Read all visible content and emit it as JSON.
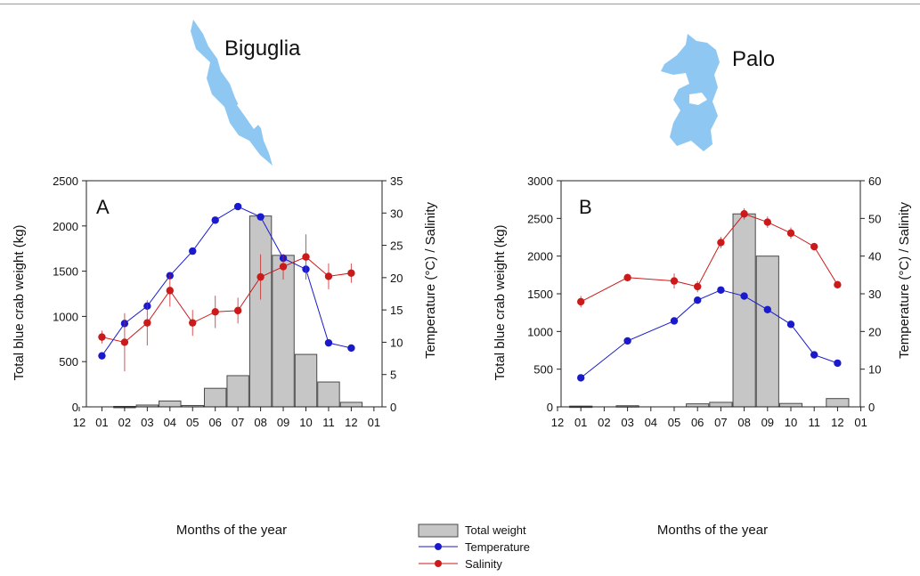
{
  "colors": {
    "bar_fill": "#c6c6c6",
    "bar_stroke": "#4a4a4a",
    "temperature": "#1a1acc",
    "salinity": "#cc1a1a",
    "lake": "#8ec8f2",
    "axis": "#222222"
  },
  "lakes": [
    {
      "name": "Biguglia",
      "icon": "biguglia-lake-map-icon"
    },
    {
      "name": "Palo",
      "icon": "palo-lake-map-icon"
    }
  ],
  "legend": {
    "items": [
      {
        "label": "Total weight",
        "kind": "bar"
      },
      {
        "label": "Temperature",
        "kind": "line-temperature"
      },
      {
        "label": "Salinity",
        "kind": "line-salinity"
      }
    ]
  },
  "chart_data": [
    {
      "type": "bar",
      "panel_label": "A",
      "xlabel": "Months of the year",
      "ylabel": "Total blue crab weight (kg)",
      "ylabel_right": "Temperature (°C) / Salinity",
      "x_ticks": [
        "12",
        "01",
        "02",
        "03",
        "04",
        "05",
        "06",
        "07",
        "08",
        "09",
        "10",
        "11",
        "12",
        "01"
      ],
      "ylim": [
        0,
        2500
      ],
      "y_ticks": [
        0,
        500,
        1000,
        1500,
        2000,
        2500
      ],
      "ylim_right": [
        0,
        35
      ],
      "y_ticks_right": [
        0,
        5,
        10,
        15,
        20,
        25,
        30,
        35
      ],
      "grid": false,
      "bars": {
        "name": "Total weight",
        "x": [
          2,
          3,
          4,
          5,
          6,
          7,
          8,
          9,
          10,
          11,
          12
        ],
        "values": [
          5,
          20,
          65,
          15,
          205,
          345,
          2110,
          1675,
          580,
          275,
          50
        ]
      },
      "series": [
        {
          "name": "Temperature",
          "axis": "right",
          "x": [
            1,
            2,
            3,
            4,
            5,
            6,
            7,
            8,
            9,
            10,
            11,
            12
          ],
          "values": [
            7.9,
            12.9,
            15.6,
            20.3,
            24.1,
            28.9,
            31.0,
            29.4,
            23.0,
            21.3,
            9.9,
            9.1
          ]
        },
        {
          "name": "Salinity",
          "axis": "right",
          "x": [
            1,
            2,
            3,
            4,
            5,
            6,
            7,
            8,
            9,
            10,
            11,
            12
          ],
          "values": [
            10.8,
            10.0,
            13.0,
            18.0,
            13.0,
            14.7,
            14.9,
            20.1,
            21.7,
            23.2,
            20.2,
            20.7
          ],
          "errors": [
            1.0,
            4.5,
            3.5,
            2.5,
            2.0,
            2.5,
            2.0,
            3.5,
            2.0,
            3.5,
            2.0,
            1.5
          ]
        }
      ]
    },
    {
      "type": "bar",
      "panel_label": "B",
      "xlabel": "Months of the year",
      "ylabel": "Total blue crab weight (kg)",
      "ylabel_right": "Temperature (°C) / Salinity",
      "x_ticks": [
        "12",
        "01",
        "02",
        "03",
        "04",
        "05",
        "06",
        "07",
        "08",
        "09",
        "10",
        "11",
        "12",
        "01"
      ],
      "ylim": [
        0,
        3000
      ],
      "y_ticks": [
        0,
        500,
        1000,
        1500,
        2000,
        2500,
        3000
      ],
      "ylim_right": [
        0,
        60
      ],
      "y_ticks_right": [
        0,
        10,
        20,
        30,
        40,
        50,
        60
      ],
      "grid": false,
      "bars": {
        "name": "Total weight",
        "x": [
          1,
          3,
          6,
          7,
          8,
          9,
          10,
          12
        ],
        "values": [
          10,
          15,
          40,
          60,
          2560,
          2000,
          45,
          110
        ]
      },
      "series": [
        {
          "name": "Temperature",
          "axis": "right",
          "x": [
            1,
            3,
            5,
            6,
            7,
            8,
            9,
            10,
            11,
            12
          ],
          "values": [
            7.7,
            17.5,
            22.8,
            28.3,
            31.0,
            29.4,
            25.8,
            21.9,
            13.8,
            11.6
          ]
        },
        {
          "name": "Salinity",
          "axis": "right",
          "x": [
            1,
            3,
            5,
            6,
            7,
            8,
            9,
            10,
            11,
            12
          ],
          "values": [
            27.9,
            34.3,
            33.4,
            31.9,
            43.6,
            51.2,
            49.0,
            46.1,
            42.5,
            32.4
          ],
          "errors": [
            1.5,
            1.0,
            2.0,
            1.5,
            1.5,
            1.5,
            1.5,
            1.5,
            1.0,
            1.0
          ]
        }
      ]
    }
  ]
}
